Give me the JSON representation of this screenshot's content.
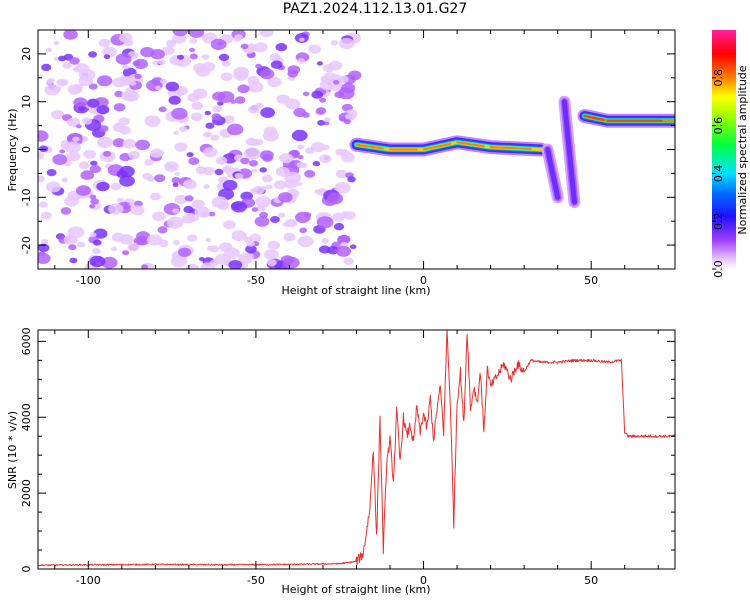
{
  "title": "PAZ1.2024.112.13.01.G27",
  "chart_data": [
    {
      "type": "heatmap",
      "xlabel": "Height of straight line (km)",
      "ylabel": "Frequency (Hz)",
      "xlim": [
        -115,
        75
      ],
      "ylim": [
        -25,
        25
      ],
      "xticks": [
        -100,
        -50,
        0,
        50
      ],
      "yticks": [
        -20,
        -10,
        0,
        10,
        20
      ],
      "colorbar": {
        "label": "Normalized spectral amplitude",
        "range": [
          0.0,
          1.0
        ],
        "ticks": [
          0.0,
          0.2,
          0.4,
          0.6,
          0.8
        ],
        "colormap": "rainbow (white-purple-blue-cyan-green-yellow-red-magenta)"
      },
      "features": [
        {
          "description": "diffuse noise",
          "x_range": [
            -115,
            -20
          ],
          "f_range": [
            -25,
            25
          ],
          "amplitude": 0.1
        },
        {
          "description": "signal track",
          "points": [
            [
              -20,
              1
            ],
            [
              -10,
              0
            ],
            [
              0,
              0
            ],
            [
              10,
              1.5
            ],
            [
              20,
              0.5
            ],
            [
              35,
              0
            ]
          ],
          "amplitude": 0.75
        },
        {
          "description": "steep drop",
          "points": [
            [
              37,
              0
            ],
            [
              40,
              -10
            ]
          ],
          "amplitude": 0.1
        },
        {
          "description": "steep drop",
          "points": [
            [
              42,
              10
            ],
            [
              45,
              -11
            ]
          ],
          "amplitude": 0.1
        },
        {
          "description": "signal track",
          "points": [
            [
              48,
              7
            ],
            [
              55,
              6
            ],
            [
              75,
              6
            ]
          ],
          "amplitude": 0.8
        }
      ]
    },
    {
      "type": "line",
      "xlabel": "Height of straight line (km)",
      "ylabel": "SNR (10 * v/v)",
      "xlim": [
        -115,
        75
      ],
      "ylim": [
        0,
        6300
      ],
      "xticks": [
        -100,
        -50,
        0,
        50
      ],
      "yticks": [
        0,
        2000,
        4000,
        6000
      ],
      "series": [
        {
          "color": "#e83030",
          "x": [
            -115,
            -100,
            -80,
            -60,
            -40,
            -25,
            -20,
            -18,
            -16,
            -15,
            -14,
            -13,
            -12,
            -11,
            -10,
            -9,
            -8,
            -7,
            -6,
            -5,
            -4,
            -3,
            -2,
            -1,
            0,
            1,
            2,
            3,
            4,
            5,
            6,
            7,
            8,
            9,
            10,
            11,
            12,
            13,
            14,
            15,
            16,
            17,
            18,
            19,
            20,
            22,
            24,
            26,
            28,
            30,
            32,
            35,
            40,
            45,
            50,
            55,
            59,
            60,
            61,
            65,
            70,
            75
          ],
          "y": [
            100,
            110,
            120,
            110,
            120,
            140,
            200,
            400,
            1600,
            3200,
            800,
            4000,
            500,
            2800,
            3400,
            2300,
            4200,
            2800,
            4000,
            3500,
            3800,
            3300,
            4300,
            3600,
            4100,
            3700,
            4500,
            3400,
            4200,
            4800,
            3600,
            6300,
            4300,
            1200,
            4400,
            5200,
            3800,
            6300,
            4200,
            4800,
            4400,
            5200,
            3600,
            5300,
            4800,
            5100,
            5400,
            5000,
            5400,
            5200,
            5500,
            5450,
            5450,
            5500,
            5500,
            5450,
            5500,
            3600,
            3500,
            3500,
            3500,
            3500
          ]
        }
      ]
    }
  ]
}
